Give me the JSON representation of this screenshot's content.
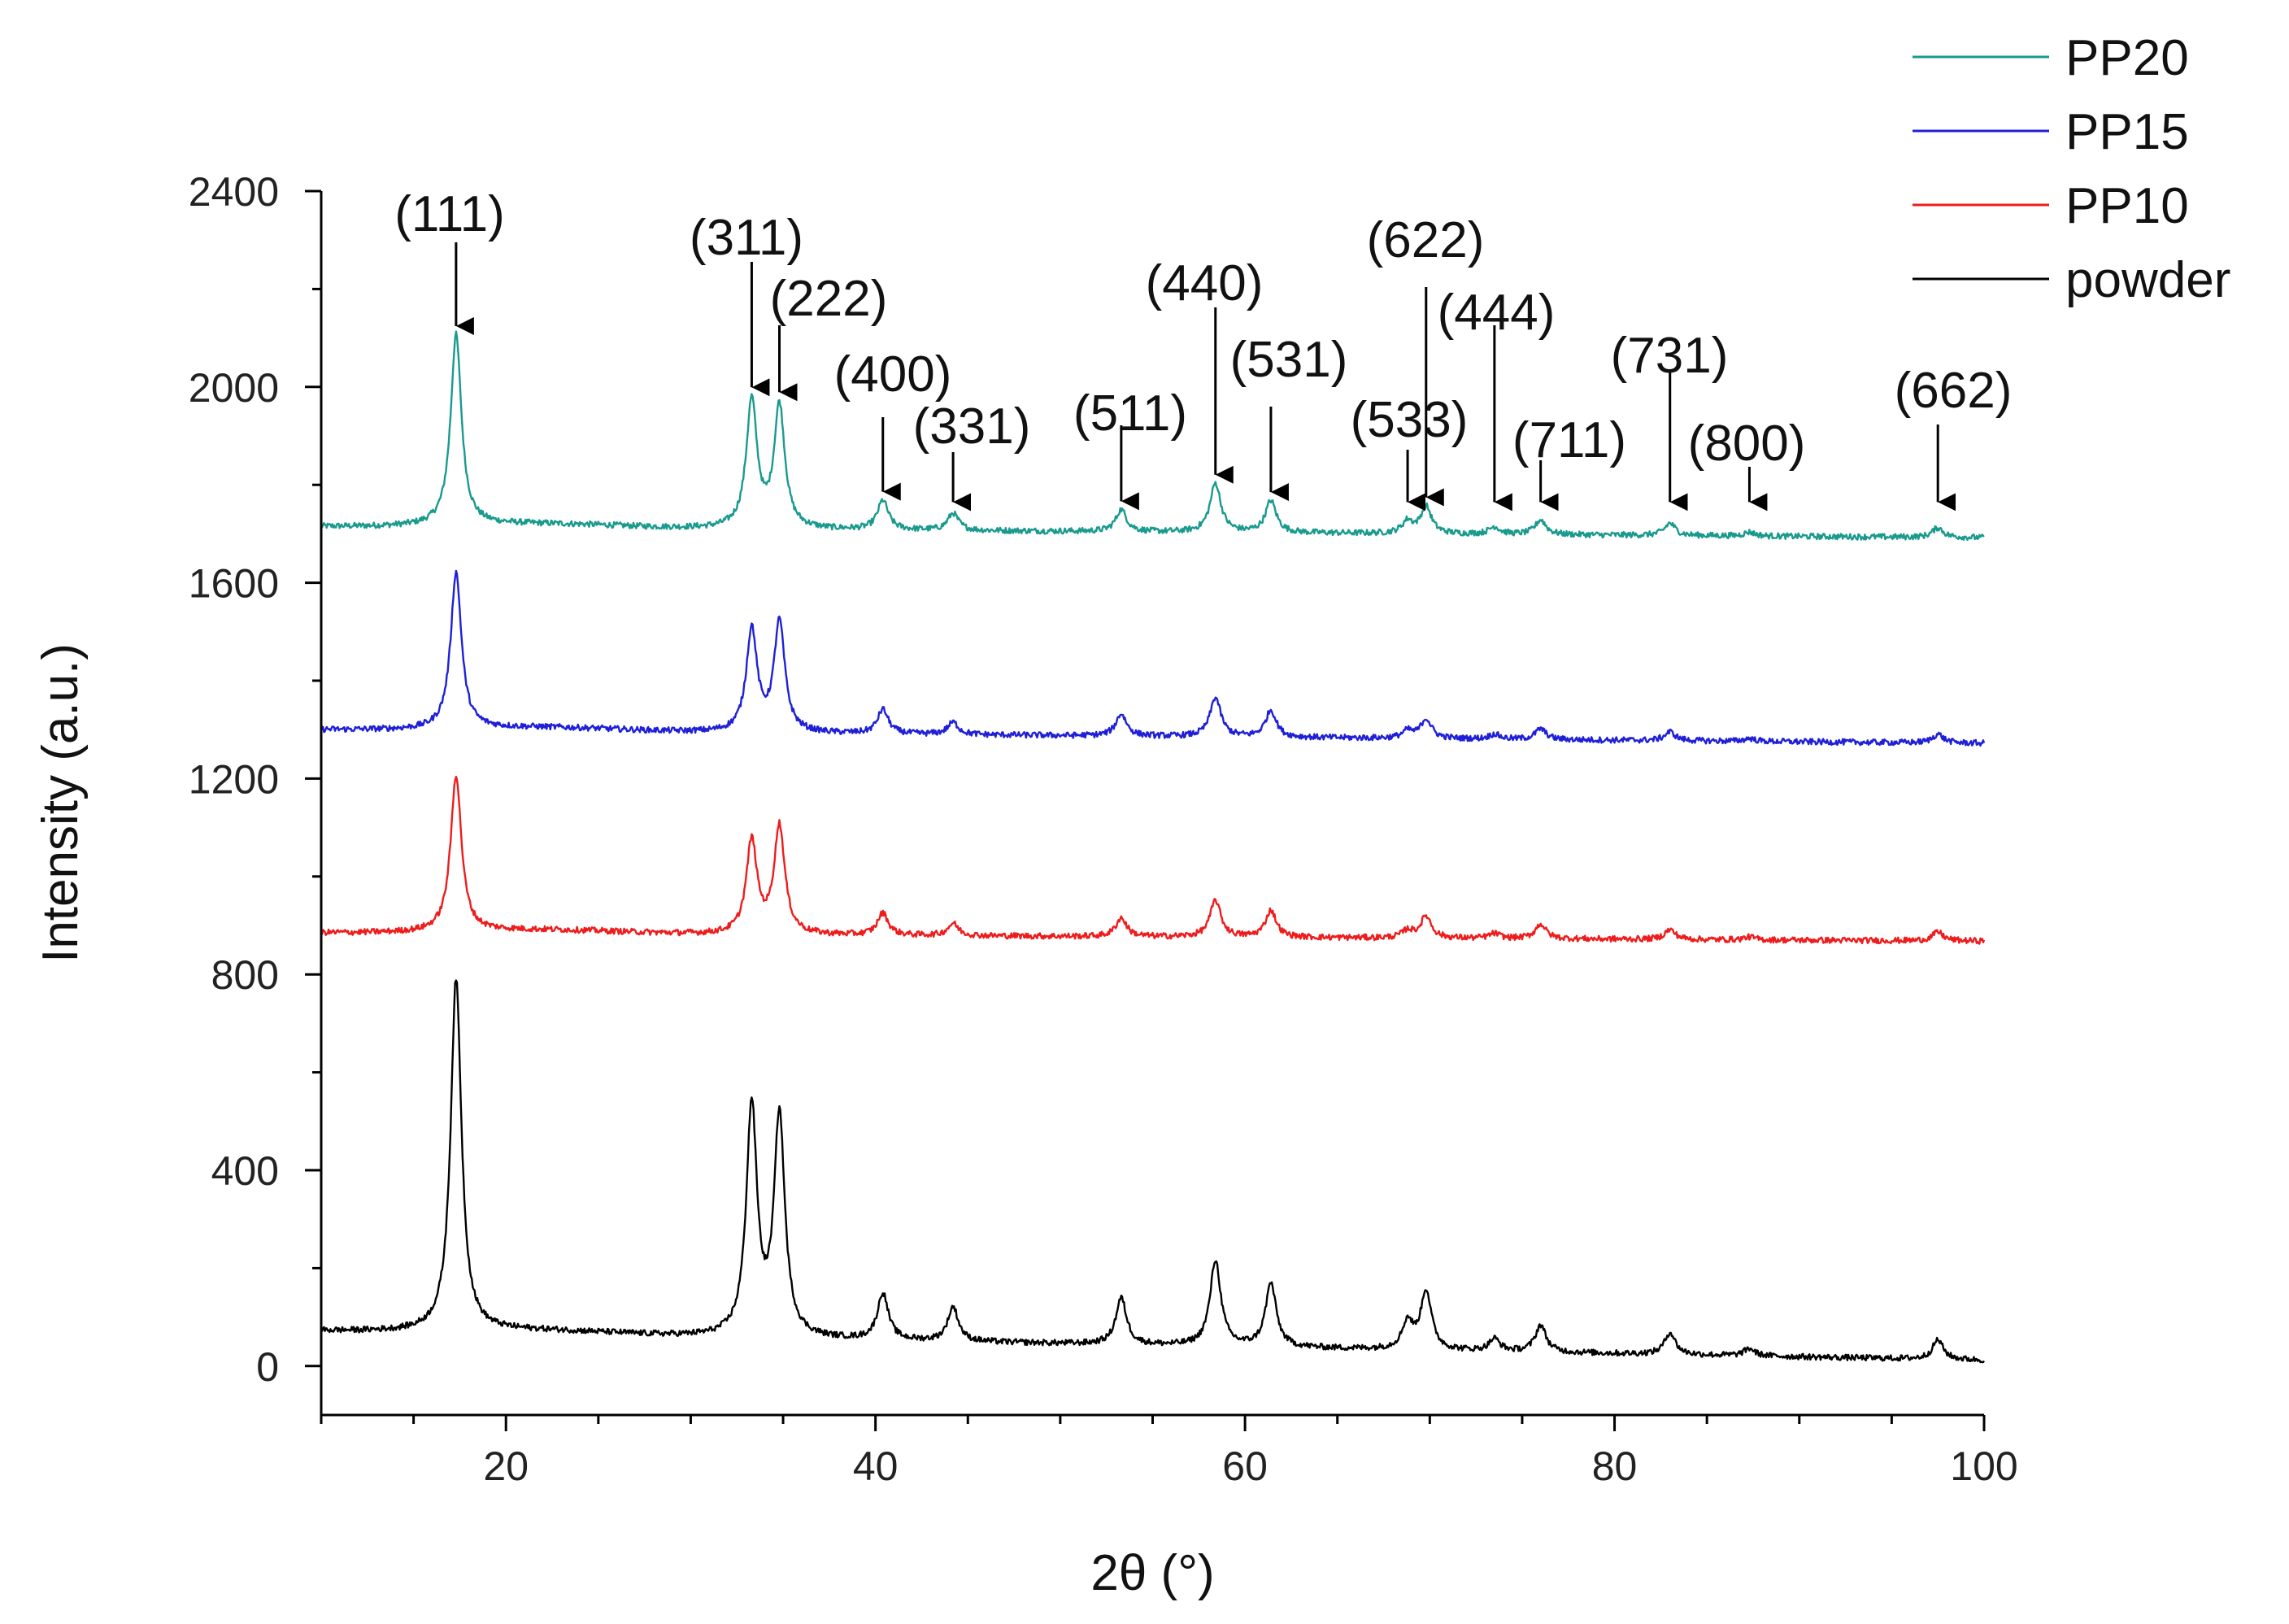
{
  "chart_data": {
    "type": "line",
    "title": "",
    "xlabel": "2θ (°)",
    "ylabel": "Intensity (a.u.)",
    "xlim": [
      10,
      100
    ],
    "ylim": [
      -100,
      2400
    ],
    "x_ticks": [
      20,
      40,
      60,
      80,
      100
    ],
    "y_ticks": [
      0,
      400,
      800,
      1200,
      1600,
      2000,
      2400
    ],
    "x_tick_labels": [
      "20",
      "40",
      "60",
      "80",
      "100"
    ],
    "y_tick_labels": [
      "0",
      "400",
      "800",
      "1200",
      "1600",
      "2000",
      "2400"
    ],
    "legend_position": "top-right",
    "peaks_2theta": [
      17.3,
      33.3,
      34.8,
      40.4,
      44.2,
      53.3,
      58.4,
      61.4,
      68.8,
      69.8,
      73.5,
      76.0,
      83.0,
      87.3,
      97.5
    ],
    "peak_width": 0.35,
    "series": [
      {
        "name": "PP20",
        "color": "#1a9a8e",
        "baseline_start": 1715,
        "baseline_end": 1692,
        "peak_heights": [
          390,
          260,
          250,
          60,
          35,
          45,
          100,
          65,
          25,
          55,
          15,
          30,
          25,
          8,
          20
        ]
      },
      {
        "name": "PP15",
        "color": "#1f1fd8",
        "baseline_start": 1300,
        "baseline_end": 1272,
        "peak_heights": [
          320,
          210,
          225,
          50,
          25,
          45,
          80,
          55,
          15,
          40,
          10,
          22,
          18,
          6,
          18
        ]
      },
      {
        "name": "PP10",
        "color": "#ee1c1c",
        "baseline_start": 885,
        "baseline_end": 868,
        "peak_heights": [
          320,
          190,
          220,
          45,
          25,
          38,
          75,
          55,
          15,
          45,
          10,
          30,
          20,
          6,
          18
        ]
      },
      {
        "name": "powder",
        "color": "#000000",
        "baseline_start": 72,
        "baseline_end": 12,
        "peak_heights": [
          720,
          470,
          450,
          95,
          70,
          95,
          175,
          130,
          55,
          120,
          25,
          55,
          45,
          15,
          40
        ]
      }
    ],
    "annotations": [
      {
        "label": "(111)",
        "x": 17.3,
        "series": "PP20",
        "index": 0
      },
      {
        "label": "(311)",
        "x": 33.3,
        "series": "PP20",
        "index": 1
      },
      {
        "label": "(222)",
        "x": 34.8,
        "series": "PP20",
        "index": 2
      },
      {
        "label": "(400)",
        "x": 40.4,
        "series": "PP20",
        "index": 3
      },
      {
        "label": "(331)",
        "x": 44.2,
        "series": "PP20",
        "index": 4
      },
      {
        "label": "(511)",
        "x": 53.3,
        "series": "PP20",
        "index": 5
      },
      {
        "label": "(440)",
        "x": 58.4,
        "series": "PP20",
        "index": 6
      },
      {
        "label": "(531)",
        "x": 61.4,
        "series": "PP20",
        "index": 7
      },
      {
        "label": "(533)",
        "x": 68.8,
        "series": "PP20",
        "index": 8
      },
      {
        "label": "(622)",
        "x": 69.8,
        "series": "PP20",
        "index": 9
      },
      {
        "label": "(444)",
        "x": 73.5,
        "series": "PP20",
        "index": 10
      },
      {
        "label": "(711)",
        "x": 76.0,
        "series": "PP20",
        "index": 11
      },
      {
        "label": "(731)",
        "x": 83.0,
        "series": "PP20",
        "index": 12
      },
      {
        "label": "(800)",
        "x": 87.3,
        "series": "PP20",
        "index": 13
      },
      {
        "label": "(662)",
        "x": 97.5,
        "series": "PP20",
        "index": 14
      }
    ]
  }
}
